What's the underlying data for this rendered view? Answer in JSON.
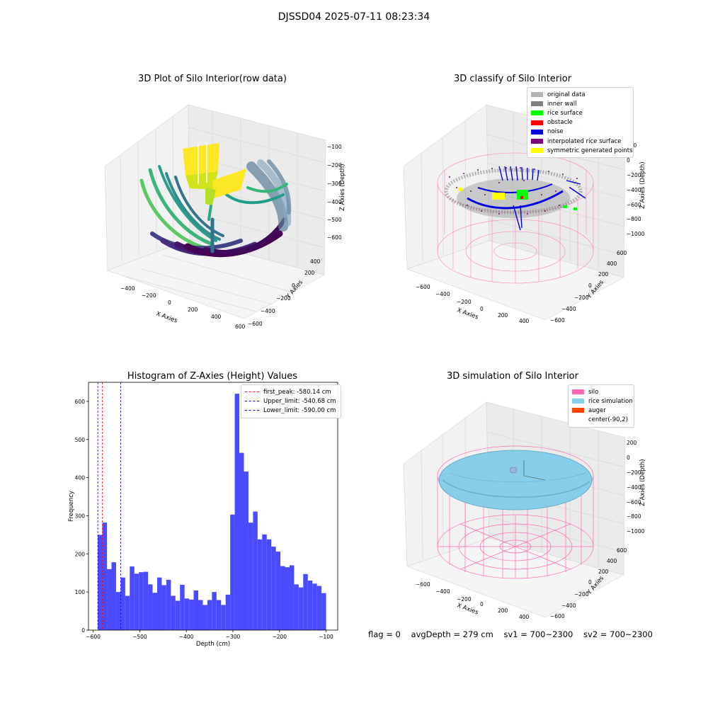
{
  "suptitle": "DJSSD04 2025-07-11 08:23:34",
  "panels": {
    "raw": {
      "title": "3D Plot of Silo Interior(row data)",
      "xlabel": "X Axies",
      "ylabel": "Y Axies",
      "zlabel": "Z Axies (Depth)",
      "xticks": [
        "−400",
        "−200",
        "0",
        "200",
        "400",
        "600"
      ],
      "yticks": [
        "−600",
        "−400",
        "−200",
        "0",
        "200",
        "400"
      ],
      "zticks": [
        "−100",
        "−200",
        "−300",
        "−400",
        "−500",
        "−600"
      ]
    },
    "classify": {
      "title": "3D classify of Silo Interior",
      "xlabel": "X Axies",
      "ylabel": "Y Axies",
      "zlabel": "Z Axies (Depth)",
      "xticks": [
        "−600",
        "−400",
        "−200",
        "0",
        "200",
        "400"
      ],
      "yticks": [
        "−600",
        "−400",
        "−200",
        "0",
        "200",
        "400",
        "600"
      ],
      "zticks": [
        "200",
        "0",
        "−200",
        "−400",
        "−600",
        "−800",
        "−1000"
      ],
      "legend": [
        {
          "label": "original data",
          "color": "#b3b3b3"
        },
        {
          "label": "inner wall",
          "color": "#808080"
        },
        {
          "label": "rice surface",
          "color": "#00ff00"
        },
        {
          "label": "obstacle",
          "color": "#ff0000"
        },
        {
          "label": "noise",
          "color": "#0000dd"
        },
        {
          "label": "interpolated rice surface",
          "color": "#800080"
        },
        {
          "label": "symmetric generated points",
          "color": "#ffff00"
        }
      ]
    },
    "simulation": {
      "title": "3D simulation of Silo Interior",
      "xlabel": "X Axies",
      "ylabel": "Y Axies",
      "zlabel": "Z Axies (Depth)",
      "xticks": [
        "−600",
        "−400",
        "−200",
        "0",
        "200",
        "400"
      ],
      "yticks": [
        "−600",
        "−400",
        "−200",
        "0",
        "200",
        "400",
        "600"
      ],
      "zticks": [
        "200",
        "0",
        "−200",
        "−400",
        "−600",
        "−800",
        "−1000"
      ],
      "legend": [
        {
          "label": "silo",
          "color": "#ff69b4"
        },
        {
          "label": "rice simulation",
          "color": "#87ceeb"
        },
        {
          "label": "auger",
          "color": "#ff4500"
        },
        {
          "label": "center(-90,2)",
          "color": ""
        }
      ]
    }
  },
  "footer": {
    "flag": "flag = 0",
    "avg": "avgDepth = 279 cm",
    "sv1": "sv1 = 700~2300",
    "sv2": "sv2 = 700~2300"
  },
  "chart_data": {
    "type": "bar",
    "title": "Histogram of Z-Axies (Height) Values",
    "xlabel": "Depth (cm)",
    "ylabel": "Frequency",
    "xlim": [
      -610,
      -75
    ],
    "ylim": [
      0,
      650
    ],
    "xticks": [
      -600,
      -500,
      -400,
      -300,
      -200,
      -100
    ],
    "yticks": [
      0,
      100,
      200,
      300,
      400,
      500,
      600
    ],
    "bar_color": "#4a4aff",
    "bin_width": 9.8,
    "bin_start": -590,
    "values": [
      250,
      282,
      160,
      178,
      100,
      138,
      90,
      167,
      148,
      152,
      153,
      120,
      98,
      138,
      118,
      132,
      90,
      77,
      119,
      83,
      80,
      104,
      79,
      66,
      79,
      100,
      79,
      66,
      93,
      303,
      620,
      465,
      416,
      282,
      311,
      238,
      251,
      238,
      219,
      206,
      168,
      165,
      170,
      120,
      112,
      147,
      130,
      122,
      116,
      97
    ],
    "vlines": [
      {
        "label": "first_peak: -580.14 cm",
        "x": -580.14,
        "color": "#ff0000"
      },
      {
        "label": "Upper_limit: -540.68 cm",
        "x": -540.68,
        "color": "#0000cc"
      },
      {
        "label": "Lower_limit: -590.00 cm",
        "x": -590.0,
        "color": "#0000cc"
      }
    ]
  }
}
